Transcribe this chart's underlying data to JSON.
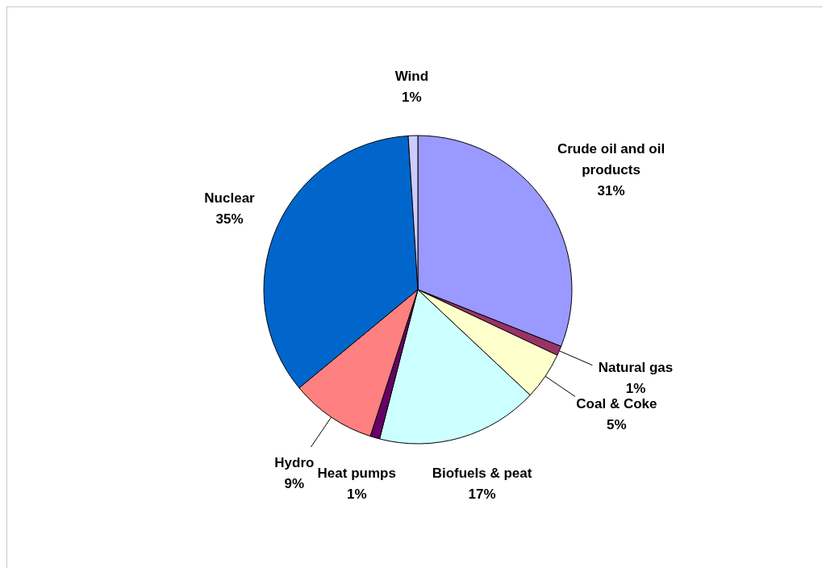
{
  "chart_data": {
    "type": "pie",
    "categories": [
      "Crude oil and oil products",
      "Natural gas",
      "Coal & Coke",
      "Biofuels & peat",
      "Heat pumps",
      "Hydro",
      "Nuclear",
      "Wind"
    ],
    "values": [
      31,
      1,
      5,
      17,
      1,
      9,
      35,
      1
    ],
    "colors": [
      "#9999ff",
      "#993366",
      "#ffffcc",
      "#ccffff",
      "#660066",
      "#ff8080",
      "#0066cc",
      "#ccccff"
    ],
    "value_labels": [
      "31%",
      "1%",
      "5%",
      "17%",
      "1%",
      "9%",
      "35%",
      "1%"
    ],
    "legend": false
  }
}
